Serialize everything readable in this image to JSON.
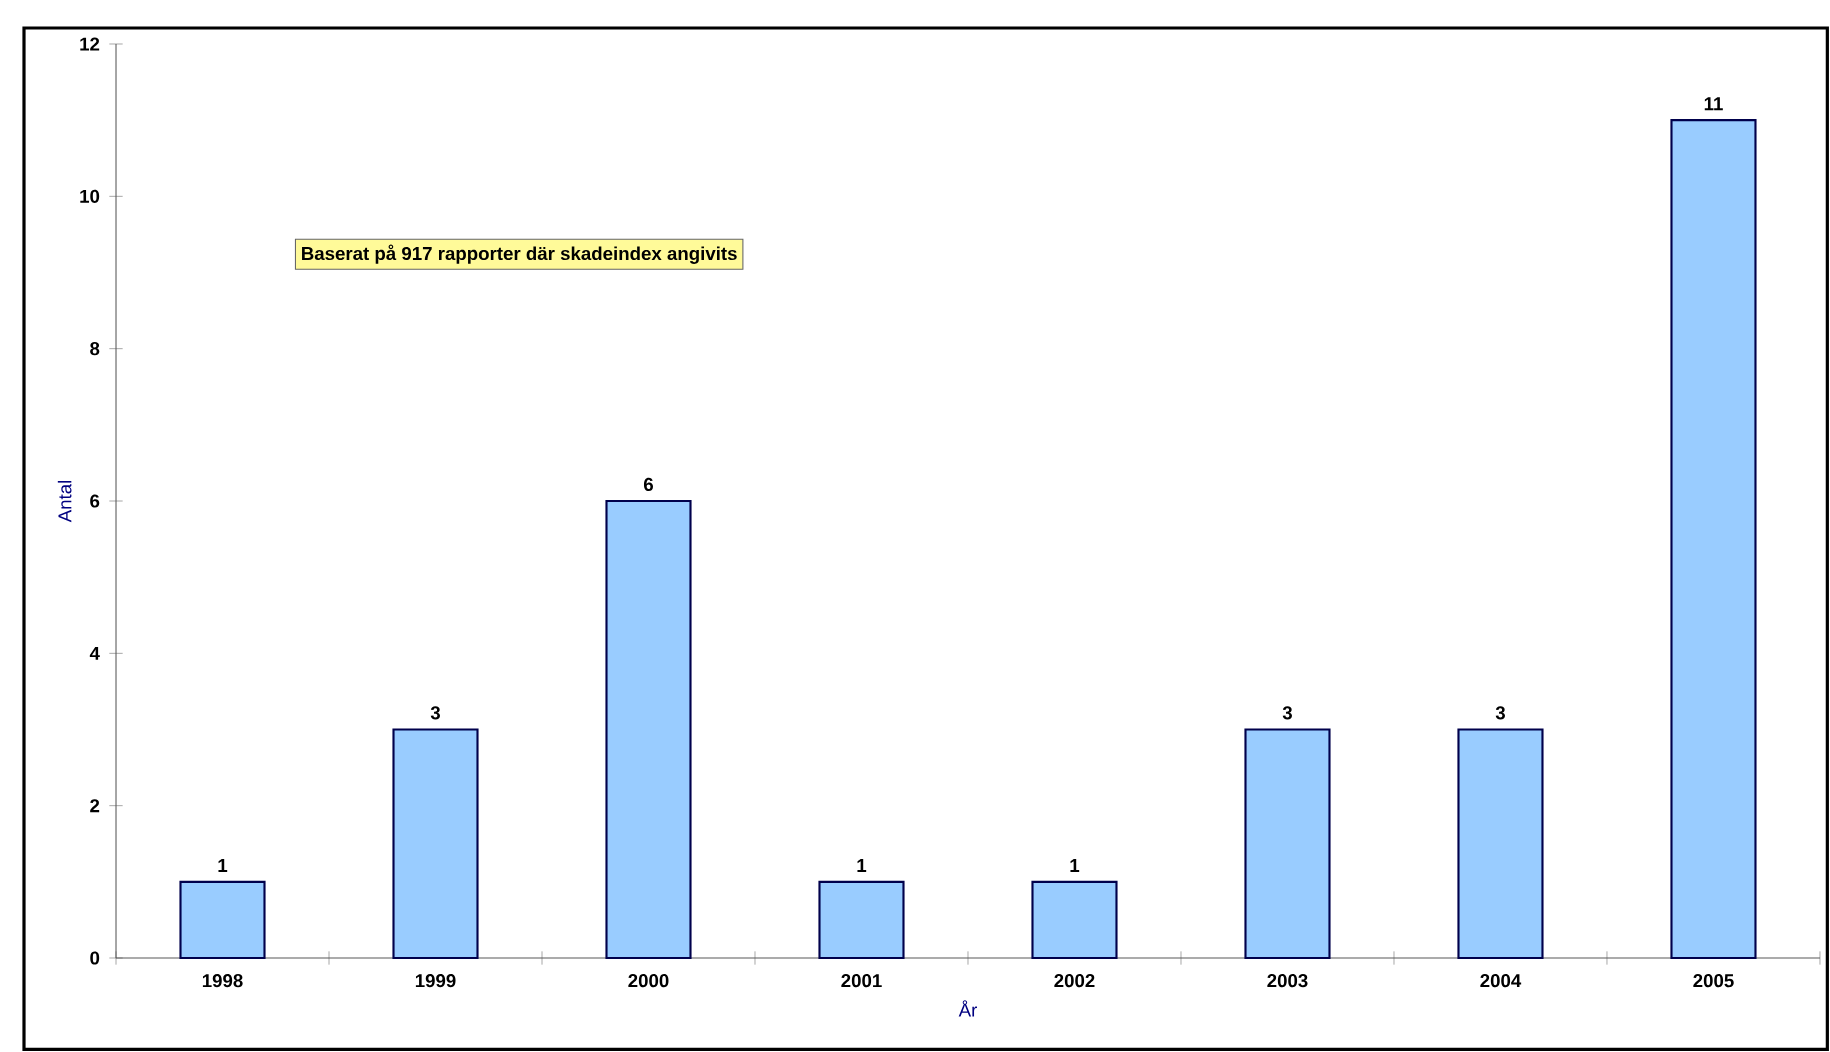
{
  "chart_data": {
    "type": "bar",
    "xlabel": "År",
    "ylabel": "Antal",
    "categories": [
      "1998",
      "1999",
      "2000",
      "2001",
      "2002",
      "2003",
      "2004",
      "2005"
    ],
    "values": [
      1,
      3,
      6,
      1,
      1,
      3,
      3,
      11
    ],
    "color": "#99ccff",
    "ylim": [
      0,
      12
    ],
    "yticks": [
      0,
      2,
      4,
      6,
      8,
      10,
      12
    ],
    "data_labels": true,
    "annotations": [
      "Baserat på 917 rapporter där skadeindex angivits"
    ]
  }
}
